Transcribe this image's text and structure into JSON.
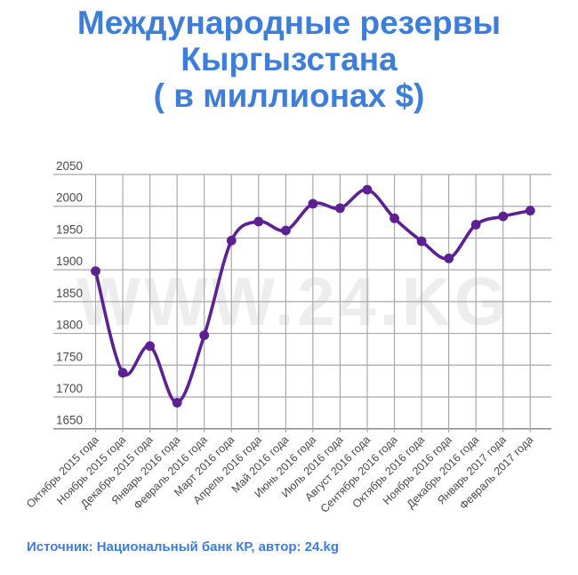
{
  "header": {
    "title_line1": "Международные резервы",
    "title_line2": "Кыргызстана",
    "title_line3": "( в миллионах $)"
  },
  "footer": {
    "source": "Источник: Национальный банк КР, автор: 24.kg"
  },
  "watermark": "WWW.24.KG",
  "colors": {
    "accent_blue": "#3c7ed8",
    "line_purple": "#5d2092",
    "grid_gray": "#a9a9a9",
    "axis_gray": "#8a8a8a",
    "label_gray": "#4a4a4a",
    "watermark_gray": "#ededed"
  },
  "chart_data": {
    "type": "line",
    "title": "Международные резервы Кыргызстана ( в миллионах $)",
    "xlabel": "",
    "ylabel": "",
    "categories": [
      "Октябрь 2015 года",
      "Ноябрь 2015 года",
      "Декабрь 2015 года",
      "Январь 2016 года",
      "Февраль 2016 года",
      "Март 2016 года",
      "Апрель 2016 года",
      "Май 2016 года",
      "Июнь 2016 года",
      "Июль 2016 года",
      "Август 2016 года",
      "Сентябрь 2016 года",
      "Октябрь 2016 года",
      "Ноябрь 2016 года",
      "Декабрь 2016 года",
      "Январь 2017 года",
      "Февраль 2017 года"
    ],
    "values": [
      1898,
      1738,
      1780,
      1691,
      1797,
      1946,
      1976,
      1962,
      2004,
      1997,
      2026,
      1981,
      1945,
      1918,
      1971,
      1984,
      1993
    ],
    "ylim": [
      1650,
      2050
    ],
    "ytick_step": 50,
    "grid": "both",
    "legend": "none",
    "marker": "circle",
    "smooth": true
  }
}
